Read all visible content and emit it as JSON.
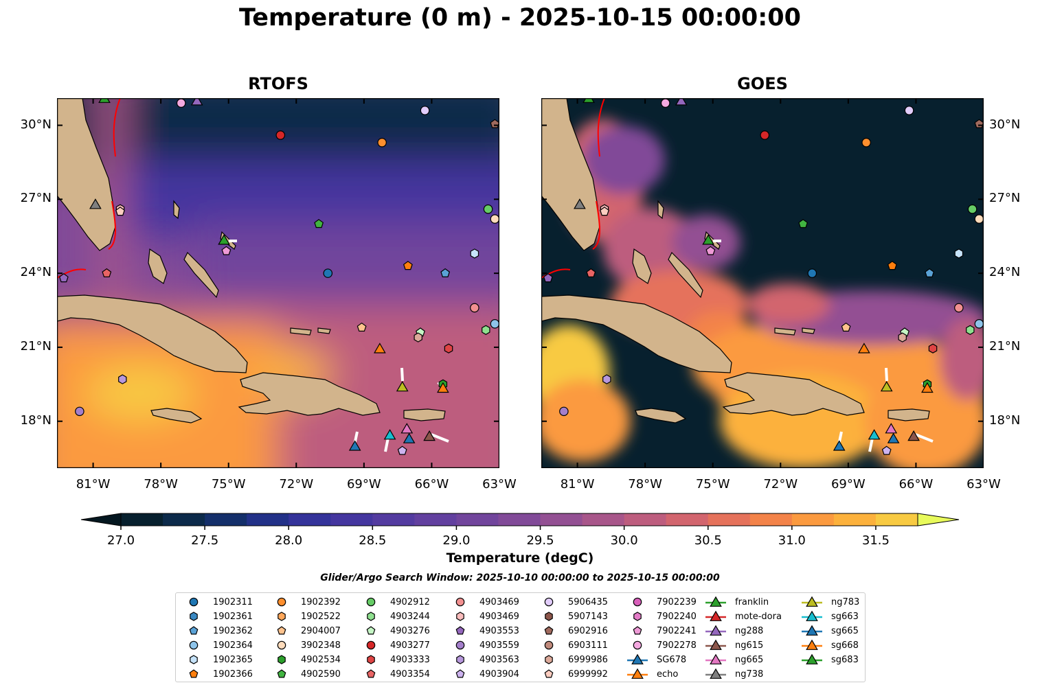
{
  "title": "Temperature (0 m) - 2025-10-15 00:00:00",
  "colors": {
    "land": "#d2b48c",
    "gulf_stream": "#ff0000",
    "track": "#ffffff"
  },
  "chart_data": {
    "type": "map",
    "panels": [
      {
        "title": "RTOFS"
      },
      {
        "title": "GOES"
      }
    ],
    "extent": {
      "lon": [
        -82.6,
        -63.0
      ],
      "lat": [
        16.1,
        31.1
      ]
    },
    "x_ticks": [
      {
        "v": -81,
        "label": "81°W"
      },
      {
        "v": -78,
        "label": "78°W"
      },
      {
        "v": -75,
        "label": "75°W"
      },
      {
        "v": -72,
        "label": "72°W"
      },
      {
        "v": -69,
        "label": "69°W"
      },
      {
        "v": -66,
        "label": "66°W"
      },
      {
        "v": -63,
        "label": "63°W"
      }
    ],
    "y_ticks": [
      {
        "v": 30,
        "label": "30°N"
      },
      {
        "v": 27,
        "label": "27°N"
      },
      {
        "v": 24,
        "label": "24°N"
      },
      {
        "v": 21,
        "label": "21°N"
      },
      {
        "v": 18,
        "label": "18°N"
      }
    ],
    "colorbar": {
      "label": "Temperature (degC)",
      "range": [
        27.0,
        31.75
      ],
      "step": 0.25,
      "extend": "both",
      "ticks": [
        "27.0",
        "27.5",
        "28.0",
        "28.5",
        "29.0",
        "29.5",
        "30.0",
        "30.5",
        "31.0",
        "31.5"
      ],
      "colors": [
        "#07202e",
        "#0c2a4a",
        "#142f6a",
        "#223188",
        "#34339a",
        "#44369f",
        "#533ba0",
        "#62409f",
        "#71459c",
        "#814a98",
        "#935093",
        "#a8568a",
        "#bd5d7e",
        "#d2656e",
        "#e5725b",
        "#f38349",
        "#fb9a3f",
        "#fcb13c",
        "#f8ca42",
        "#f0e252"
      ],
      "under_color": "#041720",
      "over_color": "#e8fa5b"
    },
    "search_window": "Glider/Argo Search Window: 2025-10-10 00:00:00 to 2025-10-15 00:00:00",
    "markers": [
      {
        "id": "1902311",
        "shape": "circle",
        "color": "#1f77b4",
        "lon": -70.6,
        "lat": 24.0
      },
      {
        "id": "1902361",
        "shape": "hexagon",
        "color": "#3a89c3",
        "lon": null,
        "lat": null
      },
      {
        "id": "1902362",
        "shape": "pentagon",
        "color": "#5aa2d6",
        "lon": -65.4,
        "lat": 24.0
      },
      {
        "id": "1902364",
        "shape": "circle",
        "color": "#8ec4ea",
        "lon": -63.2,
        "lat": 21.95
      },
      {
        "id": "1902365",
        "shape": "hexagon",
        "color": "#c6e3fa",
        "lon": -64.1,
        "lat": 24.8
      },
      {
        "id": "1902366",
        "shape": "pentagon",
        "color": "#ff7f0e",
        "lon": -67.05,
        "lat": 24.3
      },
      {
        "id": "1902392",
        "shape": "circle",
        "color": "#ff8f2e",
        "lon": -68.2,
        "lat": 29.3
      },
      {
        "id": "1902522",
        "shape": "hexagon",
        "color": "#ffa75a",
        "lon": null,
        "lat": null
      },
      {
        "id": "2904007",
        "shape": "pentagon",
        "color": "#ffc38e",
        "lon": -69.1,
        "lat": 21.8
      },
      {
        "id": "3902348",
        "shape": "circle",
        "color": "#ffdcbc",
        "lon": -63.2,
        "lat": 26.2
      },
      {
        "id": "4902534",
        "shape": "hexagon",
        "color": "#2ca02c",
        "lon": -65.5,
        "lat": 19.5
      },
      {
        "id": "4902590",
        "shape": "pentagon",
        "color": "#41b441",
        "lon": -71.0,
        "lat": 26.0
      },
      {
        "id": "4902912",
        "shape": "circle",
        "color": "#66cc66",
        "lon": -63.5,
        "lat": 26.6
      },
      {
        "id": "4903244",
        "shape": "hexagon",
        "color": "#8fe08f",
        "lon": -63.6,
        "lat": 21.7
      },
      {
        "id": "4903276",
        "shape": "pentagon",
        "color": "#c5f5c5",
        "lon": -66.5,
        "lat": 21.6
      },
      {
        "id": "4903277",
        "shape": "circle",
        "color": "#d62728",
        "lon": -72.7,
        "lat": 29.6
      },
      {
        "id": "4903333",
        "shape": "hexagon",
        "color": "#df4444",
        "lon": -65.25,
        "lat": 20.95
      },
      {
        "id": "4903354",
        "shape": "pentagon",
        "color": "#e86464",
        "lon": -80.4,
        "lat": 24.0
      },
      {
        "id": "4903469",
        "shape": "circle",
        "color": "#f29090",
        "lon": -64.1,
        "lat": 22.6
      },
      {
        "id": "4903469",
        "shape": "hexagon",
        "color": "#f9bcbc",
        "lon": -79.8,
        "lat": 26.6
      },
      {
        "id": "4903553",
        "shape": "pentagon",
        "color": "#9467bd",
        "lon": -82.3,
        "lat": 23.8
      },
      {
        "id": "4903559",
        "shape": "circle",
        "color": "#a47fcb",
        "lon": -81.6,
        "lat": 18.4
      },
      {
        "id": "4903563",
        "shape": "hexagon",
        "color": "#b798dc",
        "lon": -79.7,
        "lat": 19.7
      },
      {
        "id": "4903904",
        "shape": "pentagon",
        "color": "#cdb3ef",
        "lon": -67.3,
        "lat": 16.8
      },
      {
        "id": "5906435",
        "shape": "circle",
        "color": "#e2cdfb",
        "lon": -66.3,
        "lat": 30.6
      },
      {
        "id": "5907143",
        "shape": "hexagon",
        "color": "#8c564b",
        "lon": null,
        "lat": null
      },
      {
        "id": "6902916",
        "shape": "pentagon",
        "color": "#a06a5e",
        "lon": -63.2,
        "lat": 30.05
      },
      {
        "id": "6903111",
        "shape": "circle",
        "color": "#c08a7c",
        "lon": null,
        "lat": null
      },
      {
        "id": "6999986",
        "shape": "hexagon",
        "color": "#dca99a",
        "lon": -66.6,
        "lat": 21.4
      },
      {
        "id": "6999992",
        "shape": "pentagon",
        "color": "#fccdc0",
        "lon": -79.8,
        "lat": 26.5
      },
      {
        "id": "7902239",
        "shape": "circle",
        "color": "#d85fba",
        "lon": null,
        "lat": null
      },
      {
        "id": "7902240",
        "shape": "hexagon",
        "color": "#e47cc8",
        "lon": null,
        "lat": null
      },
      {
        "id": "7902241",
        "shape": "pentagon",
        "color": "#ee9ad6",
        "lon": -75.1,
        "lat": 24.9
      },
      {
        "id": "7902278",
        "shape": "circle",
        "color": "#f4a9e0",
        "lon": -77.1,
        "lat": 30.9
      },
      {
        "id": "SG678",
        "shape": "triangle",
        "color": "#1f77b4",
        "lon": -69.4,
        "lat": 17.0
      },
      {
        "id": "echo",
        "shape": "triangle",
        "color": "#ff7f0e",
        "lon": -68.3,
        "lat": 20.95
      },
      {
        "id": "franklin",
        "shape": "triangle",
        "color": "#2ca02c",
        "lon": -75.2,
        "lat": 25.35
      },
      {
        "id": "mote-dora",
        "shape": "triangle",
        "color": "#d62728",
        "lon": null,
        "lat": null
      },
      {
        "id": "ng288",
        "shape": "triangle",
        "color": "#9467bd",
        "lon": -76.4,
        "lat": 31.0
      },
      {
        "id": "ng615",
        "shape": "triangle",
        "color": "#8c564b",
        "lon": -66.1,
        "lat": 17.4
      },
      {
        "id": "ng665",
        "shape": "triangle",
        "color": "#e377c2",
        "lon": -67.1,
        "lat": 17.7
      },
      {
        "id": "ng738",
        "shape": "triangle",
        "color": "#7f7f7f",
        "lon": -80.9,
        "lat": 26.8
      },
      {
        "id": "ng783",
        "shape": "triangle",
        "color": "#bcbd22",
        "lon": -67.3,
        "lat": 19.4
      },
      {
        "id": "sg663",
        "shape": "triangle",
        "color": "#17becf",
        "lon": -67.85,
        "lat": 17.45
      },
      {
        "id": "sg665",
        "shape": "triangle",
        "color": "#1f77b4",
        "lon": -67.0,
        "lat": 17.3
      },
      {
        "id": "sg668",
        "shape": "triangle",
        "color": "#ff7f0e",
        "lon": -65.5,
        "lat": 19.35
      },
      {
        "id": "sg683",
        "shape": "triangle",
        "color": "#2ca02c",
        "lon": -80.5,
        "lat": 31.1
      }
    ]
  }
}
